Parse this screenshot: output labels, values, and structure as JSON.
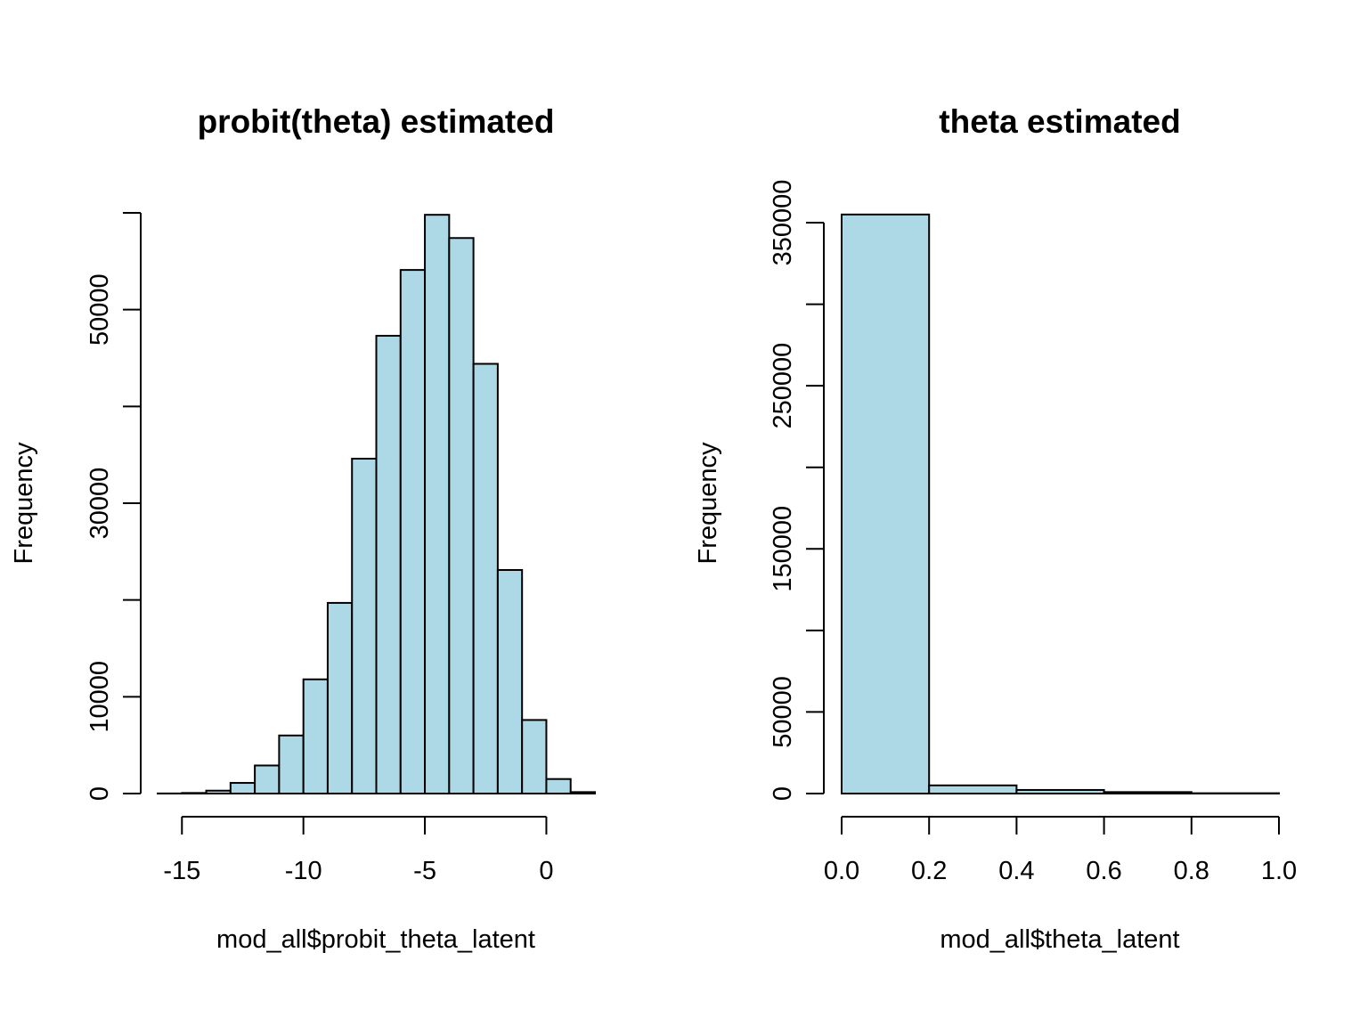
{
  "colors": {
    "bar_fill": "#add8e6",
    "bar_stroke": "#000000",
    "axis": "#000000",
    "background": "#ffffff"
  },
  "chart_data": [
    {
      "type": "bar",
      "title": "probit(theta) estimated",
      "xlabel": "mod_all$probit_theta_latent",
      "ylabel": "Frequency",
      "bin_edges": [
        -16,
        -15,
        -14,
        -13,
        -12,
        -11,
        -10,
        -9,
        -8,
        -7,
        -6,
        -5,
        -4,
        -3,
        -2,
        -1,
        0,
        1,
        2
      ],
      "values": [
        10,
        60,
        300,
        1100,
        2900,
        6000,
        11800,
        19700,
        34600,
        47300,
        54100,
        59800,
        57400,
        44400,
        23100,
        7600,
        1500,
        150
      ],
      "xlim": [
        -16,
        2
      ],
      "ylim": [
        0,
        60000
      ],
      "x_ticks": [
        -15,
        -10,
        -5,
        0
      ],
      "x_tick_labels": [
        "-15",
        "-10",
        "-5",
        "0"
      ],
      "y_ticks": [
        0,
        10000,
        20000,
        30000,
        40000,
        50000,
        60000
      ],
      "y_tick_labels": [
        "0",
        "10000",
        "",
        "30000",
        "",
        "50000",
        ""
      ],
      "grid": false
    },
    {
      "type": "bar",
      "title": "theta estimated",
      "xlabel": "mod_all$theta_latent",
      "ylabel": "Frequency",
      "bin_edges": [
        0.0,
        0.2,
        0.4,
        0.6,
        0.8,
        1.0
      ],
      "values": [
        355000,
        5000,
        2200,
        900,
        200
      ],
      "xlim": [
        0.0,
        1.0
      ],
      "ylim": [
        0,
        350000
      ],
      "x_ticks": [
        0.0,
        0.2,
        0.4,
        0.6,
        0.8,
        1.0
      ],
      "x_tick_labels": [
        "0.0",
        "0.2",
        "0.4",
        "0.6",
        "0.8",
        "1.0"
      ],
      "y_ticks": [
        0,
        50000,
        100000,
        150000,
        200000,
        250000,
        300000,
        350000
      ],
      "y_tick_labels": [
        "0",
        "50000",
        "",
        "150000",
        "",
        "250000",
        "",
        "350000"
      ],
      "grid": false
    }
  ]
}
